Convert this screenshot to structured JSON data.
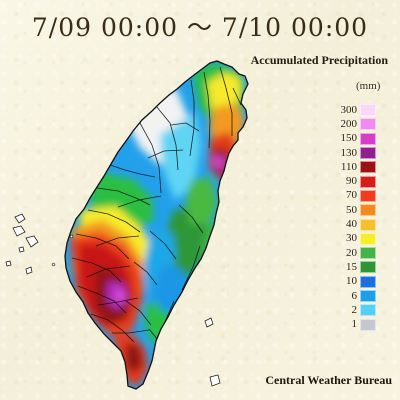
{
  "title": "7/09 00:00 ～ 7/10 00:00",
  "subtitle": "Accumulated Precipitation",
  "unit": "(mm)",
  "footer": "Central Weather Bureau",
  "legend": [
    {
      "label": "300",
      "color": "#f8d8f8"
    },
    {
      "label": "200",
      "color": "#f08cf0"
    },
    {
      "label": "150",
      "color": "#d63cc8"
    },
    {
      "label": "130",
      "color": "#8f1f8f"
    },
    {
      "label": "110",
      "color": "#9c1212"
    },
    {
      "label": "90",
      "color": "#d61c1c"
    },
    {
      "label": "70",
      "color": "#ef3d1d"
    },
    {
      "label": "50",
      "color": "#f58b1f"
    },
    {
      "label": "40",
      "color": "#f8bf2c"
    },
    {
      "label": "30",
      "color": "#f8ed2b"
    },
    {
      "label": "20",
      "color": "#44b449"
    },
    {
      "label": "15",
      "color": "#2d9738"
    },
    {
      "label": "10",
      "color": "#1c6fdd"
    },
    {
      "label": "6",
      "color": "#1b9fe6"
    },
    {
      "label": "2",
      "color": "#54d0f5"
    },
    {
      "label": "1",
      "color": "#c3c8d0"
    }
  ]
}
